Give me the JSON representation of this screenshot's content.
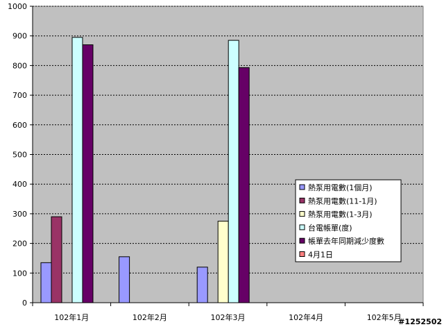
{
  "chart_data": {
    "type": "bar",
    "title": "",
    "xlabel": "",
    "ylabel": "",
    "ylim": [
      0,
      1000
    ],
    "yticks": [
      0,
      100,
      200,
      300,
      400,
      500,
      600,
      700,
      800,
      900,
      1000
    ],
    "grid": true,
    "legend_position": "right",
    "categories": [
      "102年1月",
      "102年2月",
      "102年3月",
      "102年4月",
      "102年5月"
    ],
    "series": [
      {
        "name": "熱泵用電數(1個月)",
        "color": "#9999ff",
        "values": [
          135,
          155,
          120,
          null,
          null
        ]
      },
      {
        "name": "熱泵用電數(11-1月)",
        "color": "#993366",
        "values": [
          290,
          null,
          null,
          null,
          null
        ]
      },
      {
        "name": "熱泵用電數(1-3月)",
        "color": "#ffffcc",
        "values": [
          null,
          null,
          275,
          null,
          null
        ]
      },
      {
        "name": "台電帳單(度)",
        "color": "#ccffff",
        "values": [
          895,
          null,
          885,
          null,
          null
        ]
      },
      {
        "name": "帳單去年同期減少度數",
        "color": "#660066",
        "values": [
          870,
          null,
          793,
          null,
          null
        ]
      },
      {
        "name": "4月1日",
        "color": "#ff8080",
        "values": [
          null,
          null,
          null,
          null,
          null
        ]
      }
    ]
  },
  "watermark": "#1252502"
}
